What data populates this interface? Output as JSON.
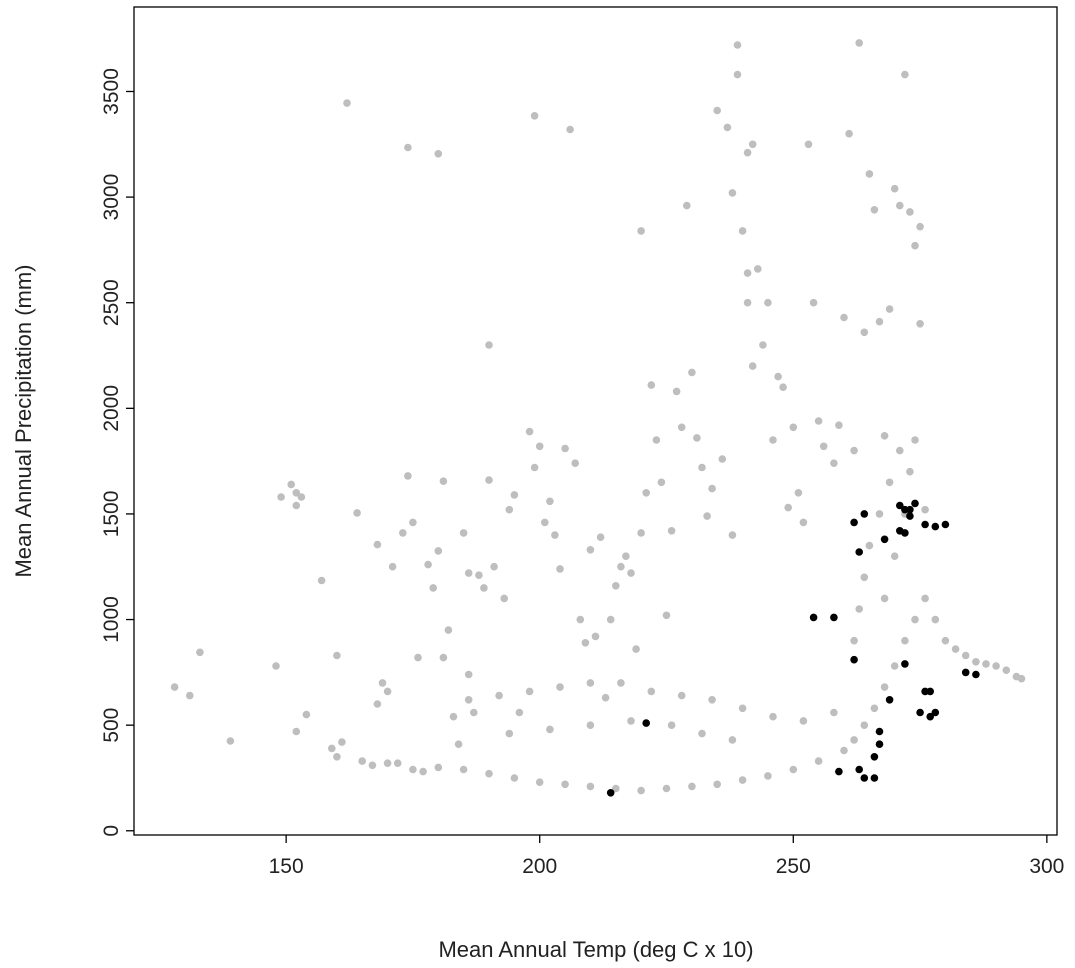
{
  "chart_data": {
    "type": "scatter",
    "title": "",
    "xlabel": "Mean Annual Temp (deg C x 10)",
    "ylabel": "Mean Annual Precipitation (mm)",
    "xlim": [
      120,
      302
    ],
    "ylim": [
      -20,
      3900
    ],
    "xticks": [
      150,
      200,
      250,
      300
    ],
    "yticks": [
      0,
      500,
      1000,
      1500,
      2000,
      2500,
      3000,
      3500
    ],
    "grid": false,
    "legend": "none",
    "series": [
      {
        "color": "#bebebe",
        "points": [
          [
            128,
            680
          ],
          [
            131,
            640
          ],
          [
            133,
            845
          ],
          [
            139,
            425
          ],
          [
            148,
            780
          ],
          [
            149,
            1580
          ],
          [
            151,
            1640
          ],
          [
            152,
            1600
          ],
          [
            152,
            1540
          ],
          [
            153,
            1580
          ],
          [
            152,
            470
          ],
          [
            154,
            550
          ],
          [
            157,
            1185
          ],
          [
            159,
            390
          ],
          [
            160,
            830
          ],
          [
            161,
            420
          ],
          [
            162,
            3445
          ],
          [
            164,
            1505
          ],
          [
            165,
            330
          ],
          [
            167,
            310
          ],
          [
            168,
            600
          ],
          [
            168,
            1355
          ],
          [
            169,
            700
          ],
          [
            170,
            660
          ],
          [
            171,
            1250
          ],
          [
            172,
            320
          ],
          [
            173,
            1410
          ],
          [
            174,
            1680
          ],
          [
            174,
            3235
          ],
          [
            175,
            1460
          ],
          [
            176,
            820
          ],
          [
            177,
            280
          ],
          [
            178,
            1260
          ],
          [
            179,
            1150
          ],
          [
            180,
            3205
          ],
          [
            180,
            1325
          ],
          [
            181,
            1655
          ],
          [
            181,
            820
          ],
          [
            182,
            950
          ],
          [
            183,
            540
          ],
          [
            184,
            410
          ],
          [
            185,
            1410
          ],
          [
            186,
            740
          ],
          [
            186,
            1220
          ],
          [
            187,
            560
          ],
          [
            188,
            1210
          ],
          [
            189,
            1150
          ],
          [
            190,
            1660
          ],
          [
            190,
            2300
          ],
          [
            191,
            1250
          ],
          [
            193,
            1100
          ],
          [
            194,
            1520
          ],
          [
            195,
            1590
          ],
          [
            196,
            560
          ],
          [
            198,
            1890
          ],
          [
            199,
            3385
          ],
          [
            199,
            1720
          ],
          [
            200,
            1820
          ],
          [
            201,
            1460
          ],
          [
            202,
            1560
          ],
          [
            203,
            1400
          ],
          [
            204,
            1240
          ],
          [
            205,
            1810
          ],
          [
            206,
            3320
          ],
          [
            207,
            1740
          ],
          [
            208,
            1000
          ],
          [
            209,
            890
          ],
          [
            210,
            1330
          ],
          [
            211,
            920
          ],
          [
            212,
            1390
          ],
          [
            213,
            630
          ],
          [
            214,
            1000
          ],
          [
            215,
            1160
          ],
          [
            216,
            1250
          ],
          [
            217,
            1300
          ],
          [
            218,
            1220
          ],
          [
            219,
            860
          ],
          [
            220,
            2840
          ],
          [
            220,
            1410
          ],
          [
            221,
            1600
          ],
          [
            222,
            2110
          ],
          [
            223,
            1850
          ],
          [
            224,
            1650
          ],
          [
            225,
            1020
          ],
          [
            226,
            1420
          ],
          [
            227,
            2080
          ],
          [
            228,
            1910
          ],
          [
            229,
            2960
          ],
          [
            230,
            2170
          ],
          [
            231,
            1860
          ],
          [
            232,
            1720
          ],
          [
            233,
            1490
          ],
          [
            234,
            1620
          ],
          [
            235,
            3410
          ],
          [
            236,
            1760
          ],
          [
            237,
            3330
          ],
          [
            238,
            3020
          ],
          [
            238,
            1400
          ],
          [
            239,
            3720
          ],
          [
            239,
            3580
          ],
          [
            240,
            2840
          ],
          [
            241,
            3210
          ],
          [
            241,
            2640
          ],
          [
            241,
            2500
          ],
          [
            242,
            3250
          ],
          [
            242,
            2200
          ],
          [
            243,
            2660
          ],
          [
            244,
            2300
          ],
          [
            245,
            2500
          ],
          [
            246,
            1850
          ],
          [
            247,
            2150
          ],
          [
            248,
            2100
          ],
          [
            249,
            1530
          ],
          [
            250,
            1910
          ],
          [
            251,
            1600
          ],
          [
            252,
            1460
          ],
          [
            253,
            3250
          ],
          [
            254,
            2500
          ],
          [
            255,
            1940
          ],
          [
            256,
            1820
          ],
          [
            258,
            1740
          ],
          [
            259,
            1920
          ],
          [
            260,
            2430
          ],
          [
            261,
            3300
          ],
          [
            262,
            1800
          ],
          [
            263,
            3730
          ],
          [
            264,
            2360
          ],
          [
            265,
            3110
          ],
          [
            266,
            2940
          ],
          [
            267,
            2410
          ],
          [
            268,
            1870
          ],
          [
            269,
            2470
          ],
          [
            270,
            3040
          ],
          [
            271,
            2960
          ],
          [
            272,
            3580
          ],
          [
            273,
            2930
          ],
          [
            274,
            2770
          ],
          [
            275,
            2860
          ],
          [
            275,
            2400
          ],
          [
            276,
            1520
          ],
          [
            160,
            350
          ],
          [
            170,
            320
          ],
          [
            175,
            290
          ],
          [
            180,
            300
          ],
          [
            185,
            290
          ],
          [
            190,
            270
          ],
          [
            195,
            250
          ],
          [
            200,
            230
          ],
          [
            205,
            220
          ],
          [
            210,
            210
          ],
          [
            215,
            200
          ],
          [
            220,
            190
          ],
          [
            225,
            200
          ],
          [
            230,
            210
          ],
          [
            235,
            220
          ],
          [
            240,
            240
          ],
          [
            245,
            260
          ],
          [
            250,
            290
          ],
          [
            255,
            330
          ],
          [
            260,
            380
          ],
          [
            262,
            430
          ],
          [
            264,
            500
          ],
          [
            266,
            580
          ],
          [
            268,
            680
          ],
          [
            270,
            780
          ],
          [
            272,
            900
          ],
          [
            274,
            1000
          ],
          [
            276,
            1100
          ],
          [
            278,
            1000
          ],
          [
            280,
            900
          ],
          [
            282,
            860
          ],
          [
            284,
            830
          ],
          [
            286,
            800
          ],
          [
            288,
            790
          ],
          [
            290,
            780
          ],
          [
            292,
            760
          ],
          [
            294,
            730
          ],
          [
            295,
            720
          ],
          [
            268,
            1100
          ],
          [
            270,
            1300
          ],
          [
            272,
            1500
          ],
          [
            273,
            1700
          ],
          [
            274,
            1850
          ],
          [
            271,
            1800
          ],
          [
            269,
            1650
          ],
          [
            267,
            1500
          ],
          [
            265,
            1350
          ],
          [
            264,
            1200
          ],
          [
            263,
            1050
          ],
          [
            262,
            900
          ],
          [
            186,
            620
          ],
          [
            192,
            640
          ],
          [
            198,
            660
          ],
          [
            204,
            680
          ],
          [
            210,
            700
          ],
          [
            216,
            700
          ],
          [
            222,
            660
          ],
          [
            228,
            640
          ],
          [
            234,
            620
          ],
          [
            240,
            580
          ],
          [
            246,
            540
          ],
          [
            252,
            520
          ],
          [
            258,
            560
          ],
          [
            194,
            460
          ],
          [
            202,
            480
          ],
          [
            210,
            500
          ],
          [
            218,
            520
          ],
          [
            226,
            500
          ],
          [
            232,
            460
          ],
          [
            238,
            430
          ]
        ]
      },
      {
        "color": "#000000",
        "points": [
          [
            214,
            180
          ],
          [
            221,
            510
          ],
          [
            254,
            1010
          ],
          [
            258,
            1010
          ],
          [
            259,
            280
          ],
          [
            262,
            810
          ],
          [
            262,
            1460
          ],
          [
            263,
            1320
          ],
          [
            263,
            290
          ],
          [
            264,
            1500
          ],
          [
            264,
            250
          ],
          [
            266,
            250
          ],
          [
            266,
            350
          ],
          [
            267,
            410
          ],
          [
            267,
            470
          ],
          [
            268,
            1380
          ],
          [
            269,
            620
          ],
          [
            271,
            1540
          ],
          [
            271,
            1420
          ],
          [
            272,
            1520
          ],
          [
            272,
            1410
          ],
          [
            272,
            790
          ],
          [
            273,
            1490
          ],
          [
            273,
            1520
          ],
          [
            274,
            1550
          ],
          [
            275,
            560
          ],
          [
            276,
            1450
          ],
          [
            276,
            660
          ],
          [
            277,
            540
          ],
          [
            277,
            660
          ],
          [
            278,
            560
          ],
          [
            278,
            1440
          ],
          [
            280,
            1450
          ],
          [
            284,
            750
          ],
          [
            286,
            740
          ]
        ]
      }
    ]
  }
}
